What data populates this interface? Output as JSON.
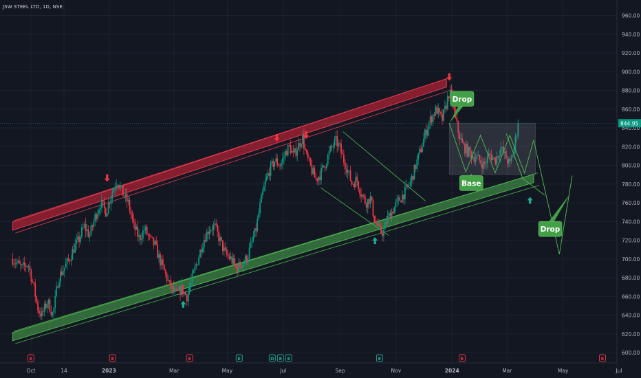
{
  "header": {
    "title": "JSW STEEL LTD, 1D, NSE"
  },
  "chart_data": {
    "type": "candlestick",
    "symbol_header": "JSW STEEL LTD, 1D, NSE",
    "ylim": [
      600,
      970
    ],
    "y_ticks": [
      {
        "value": 960,
        "label": "960.00"
      },
      {
        "value": 940,
        "label": "940.00"
      },
      {
        "value": 920,
        "label": "920.00"
      },
      {
        "value": 900,
        "label": "900.00"
      },
      {
        "value": 880,
        "label": "880.00"
      },
      {
        "value": 860,
        "label": "860.00"
      },
      {
        "value": 840,
        "label": "840.00"
      },
      {
        "value": 820,
        "label": "820.00"
      },
      {
        "value": 800,
        "label": "800.00"
      },
      {
        "value": 780,
        "label": "780.00"
      },
      {
        "value": 760,
        "label": "760.00"
      },
      {
        "value": 740,
        "label": "740.00"
      },
      {
        "value": 720,
        "label": "720.00"
      },
      {
        "value": 700,
        "label": "700.00"
      },
      {
        "value": 680,
        "label": "680.00"
      },
      {
        "value": 660,
        "label": "660.00"
      },
      {
        "value": 640,
        "label": "640.00"
      },
      {
        "value": 620,
        "label": "620.00"
      },
      {
        "value": 600,
        "label": "600.00"
      }
    ],
    "x_ticks": [
      {
        "label": "Oct",
        "day": 0
      },
      {
        "label": "14",
        "day": 36
      },
      {
        "label": "2023",
        "day": 85
      },
      {
        "label": "Mar",
        "day": 156
      },
      {
        "label": "May",
        "day": 214
      },
      {
        "label": "Jul",
        "day": 275
      },
      {
        "label": "Sep",
        "day": 337
      },
      {
        "label": "Nov",
        "day": 398
      },
      {
        "label": "2024",
        "day": 459
      },
      {
        "label": "Mar",
        "day": 519
      },
      {
        "label": "May",
        "day": 580
      },
      {
        "label": "Jul",
        "day": 641
      }
    ],
    "x_day_range": [
      -20,
      662
    ],
    "last_price": {
      "value": 844.95,
      "label": "844.95"
    },
    "price_path": [
      [
        -20,
        700
      ],
      [
        -10,
        690
      ],
      [
        -3,
        695
      ],
      [
        3,
        670
      ],
      [
        8,
        645
      ],
      [
        12,
        640
      ],
      [
        18,
        655
      ],
      [
        24,
        640
      ],
      [
        30,
        680
      ],
      [
        36,
        690
      ],
      [
        42,
        700
      ],
      [
        47,
        712
      ],
      [
        52,
        720
      ],
      [
        58,
        735
      ],
      [
        64,
        725
      ],
      [
        70,
        745
      ],
      [
        76,
        760
      ],
      [
        82,
        750
      ],
      [
        88,
        770
      ],
      [
        94,
        785
      ],
      [
        100,
        770
      ],
      [
        106,
        760
      ],
      [
        112,
        735
      ],
      [
        118,
        722
      ],
      [
        124,
        732
      ],
      [
        130,
        720
      ],
      [
        135,
        715
      ],
      [
        140,
        700
      ],
      [
        146,
        685
      ],
      [
        152,
        670
      ],
      [
        158,
        662
      ],
      [
        164,
        668
      ],
      [
        170,
        660
      ],
      [
        176,
        680
      ],
      [
        182,
        700
      ],
      [
        188,
        720
      ],
      [
        194,
        732
      ],
      [
        200,
        735
      ],
      [
        206,
        720
      ],
      [
        212,
        705
      ],
      [
        218,
        700
      ],
      [
        224,
        690
      ],
      [
        230,
        695
      ],
      [
        236,
        702
      ],
      [
        240,
        715
      ],
      [
        245,
        730
      ],
      [
        250,
        758
      ],
      [
        255,
        780
      ],
      [
        260,
        795
      ],
      [
        266,
        805
      ],
      [
        272,
        800
      ],
      [
        278,
        815
      ],
      [
        282,
        820
      ],
      [
        286,
        810
      ],
      [
        291,
        820
      ],
      [
        296,
        830
      ],
      [
        300,
        810
      ],
      [
        304,
        800
      ],
      [
        310,
        785
      ],
      [
        315,
        790
      ],
      [
        320,
        800
      ],
      [
        326,
        815
      ],
      [
        332,
        826
      ],
      [
        336,
        820
      ],
      [
        340,
        808
      ],
      [
        345,
        795
      ],
      [
        350,
        780
      ],
      [
        355,
        785
      ],
      [
        360,
        770
      ],
      [
        365,
        760
      ],
      [
        370,
        765
      ],
      [
        375,
        740
      ],
      [
        380,
        730
      ],
      [
        384,
        728
      ],
      [
        388,
        742
      ],
      [
        393,
        750
      ],
      [
        398,
        758
      ],
      [
        403,
        765
      ],
      [
        408,
        772
      ],
      [
        413,
        780
      ],
      [
        418,
        795
      ],
      [
        422,
        808
      ],
      [
        426,
        820
      ],
      [
        430,
        835
      ],
      [
        436,
        850
      ],
      [
        442,
        860
      ],
      [
        448,
        848
      ],
      [
        452,
        862
      ],
      [
        456,
        878
      ],
      [
        460,
        868
      ],
      [
        462,
        852
      ],
      [
        466,
        835
      ],
      [
        470,
        822
      ],
      [
        476,
        815
      ],
      [
        482,
        810
      ],
      [
        488,
        806
      ],
      [
        494,
        800
      ],
      [
        500,
        812
      ],
      [
        506,
        805
      ],
      [
        512,
        818
      ],
      [
        518,
        808
      ],
      [
        522,
        800
      ],
      [
        526,
        815
      ],
      [
        530,
        838
      ],
      [
        532,
        844.95
      ]
    ],
    "support_channel": [
      {
        "day": -20,
        "price": 617
      },
      {
        "day": 548,
        "price": 786
      }
    ],
    "resistance_channel": [
      {
        "day": -20,
        "price": 735
      },
      {
        "day": 453,
        "price": 888
      }
    ],
    "parallel_channel": [
      {
        "day": 340,
        "price": 836
      },
      {
        "day": 430,
        "price": 762
      },
      {
        "day": 316,
        "price": 776
      },
      {
        "day": 390,
        "price": 725
      }
    ],
    "base_zone": {
      "day_start": 456,
      "day_end": 550,
      "price_low": 790,
      "price_high": 845
    },
    "projection_a": [
      {
        "day": 456,
        "price": 845
      },
      {
        "day": 474,
        "price": 793
      },
      {
        "day": 490,
        "price": 832
      },
      {
        "day": 506,
        "price": 792
      },
      {
        "day": 522,
        "price": 832
      },
      {
        "day": 538,
        "price": 792
      },
      {
        "day": 548,
        "price": 827
      },
      {
        "day": 576,
        "price": 705
      },
      {
        "day": 590,
        "price": 789
      }
    ],
    "projection_b": [
      {
        "day": 518,
        "price": 834
      },
      {
        "day": 536,
        "price": 786
      },
      {
        "day": 560,
        "price": 768
      }
    ],
    "red_arrows": [
      {
        "day": 83,
        "price": 783
      },
      {
        "day": 268,
        "price": 826
      },
      {
        "day": 300,
        "price": 829
      },
      {
        "day": 456,
        "price": 891
      }
    ],
    "green_arrows": [
      {
        "day": 166,
        "price": 653
      },
      {
        "day": 375,
        "price": 721
      },
      {
        "day": 544,
        "price": 764
      }
    ],
    "annotations": [
      {
        "text": "Drop",
        "day": 470,
        "price": 871,
        "pointer": {
          "day": 456,
          "price": 845
        }
      },
      {
        "text": "Base",
        "day": 480,
        "price": 781,
        "pointer": {
          "day": 480,
          "price": 791
        }
      },
      {
        "text": "Drop",
        "day": 566,
        "price": 732,
        "pointer": {
          "day": 588,
          "price": 770
        }
      }
    ],
    "event_markers": [
      {
        "day": 0,
        "text": "E",
        "color": "#f23645"
      },
      {
        "day": 89,
        "text": "E",
        "color": "#f23645"
      },
      {
        "day": 173,
        "text": "E",
        "color": "#f23645"
      },
      {
        "day": 227,
        "text": "E",
        "color": "#22ab94"
      },
      {
        "day": 263,
        "text": "D",
        "color": "#22ab94"
      },
      {
        "day": 272,
        "text": "E",
        "color": "#22ab94"
      },
      {
        "day": 281,
        "text": "E",
        "color": "#22ab94"
      },
      {
        "day": 380,
        "text": "E",
        "color": "#22ab94"
      },
      {
        "day": 470,
        "text": "E",
        "color": "#f23645"
      },
      {
        "day": 623,
        "text": "E",
        "color": "#f23645"
      }
    ]
  }
}
